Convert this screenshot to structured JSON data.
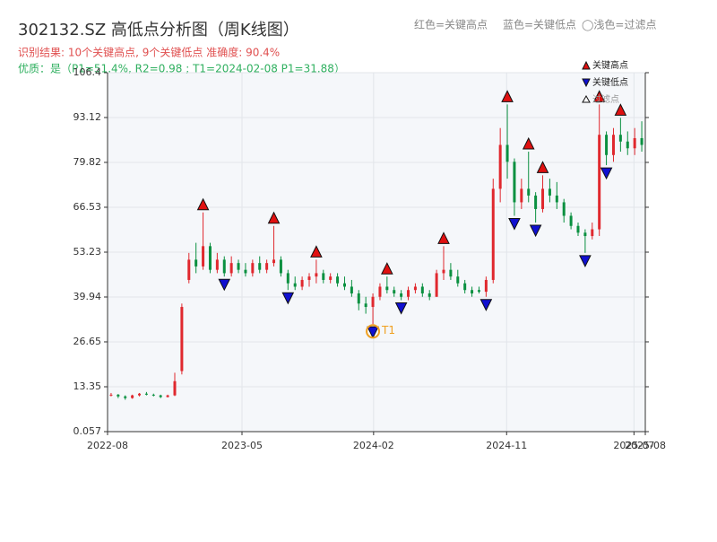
{
  "chart_data": {
    "type": "candlestick",
    "title": "302132.SZ 高低点分析图（周K线图）",
    "subtitle": "识别结果: 10个关键高点, 9个关键低点  准确度: 90.4%",
    "quality_note": "优质：是（P1=51.4%, R2=0.98 ; T1=2024-02-08 P1=31.88）",
    "top_legend": [
      "红色=关键高点",
      "蓝色=关键低点",
      "◯浅色=过滤点"
    ],
    "legend": {
      "high": "关键高点",
      "low": "关键低点",
      "filtered": "过滤点",
      "high_color": "#e01010",
      "low_color": "#1010d0",
      "filtered_color": "#ffffff"
    },
    "up_color": "#e0282e",
    "down_color": "#0a9040",
    "xlim": [
      0,
      76
    ],
    "xticks": [
      {
        "value": 0,
        "label": "2022-08"
      },
      {
        "value": 19,
        "label": "2023-05"
      },
      {
        "value": 37.6,
        "label": "2024-02"
      },
      {
        "value": 56.4,
        "label": "2024-11"
      },
      {
        "value": 74.4,
        "label": "2025-07"
      },
      {
        "value": 76,
        "label": "2025-08"
      }
    ],
    "ylim": [
      0.057,
      106.4
    ],
    "yticks": [
      0.057,
      13.35,
      26.65,
      39.94,
      53.23,
      66.53,
      79.82,
      93.12,
      106.4
    ],
    "grid": true,
    "candles": [
      [
        11,
        11.5,
        10.5,
        11
      ],
      [
        11,
        11.2,
        10,
        10.5
      ],
      [
        10.5,
        10.8,
        9.5,
        10
      ],
      [
        10,
        11,
        9.8,
        10.8
      ],
      [
        10.8,
        11.5,
        10.5,
        11.3
      ],
      [
        11.3,
        11.8,
        10.8,
        11
      ],
      [
        11,
        11.3,
        10.5,
        10.8
      ],
      [
        10.8,
        11,
        10,
        10.3
      ],
      [
        10.3,
        11,
        10.2,
        10.8
      ],
      [
        10.8,
        17.5,
        10.6,
        15
      ],
      [
        18,
        38,
        17,
        37
      ],
      [
        45,
        53,
        44,
        51
      ],
      [
        51,
        56,
        47,
        49
      ],
      [
        49,
        65,
        48,
        55
      ],
      [
        55,
        56,
        47,
        48
      ],
      [
        48,
        53,
        47,
        51
      ],
      [
        51,
        52,
        46,
        47
      ],
      [
        47,
        52,
        46,
        50
      ],
      [
        50,
        51,
        47,
        48
      ],
      [
        48,
        50,
        46,
        47
      ],
      [
        47,
        51,
        46,
        50
      ],
      [
        50,
        52,
        47,
        48
      ],
      [
        48,
        51,
        47,
        50
      ],
      [
        50,
        61,
        49,
        51
      ],
      [
        51,
        52,
        46,
        47
      ],
      [
        47,
        48,
        42,
        44
      ],
      [
        44,
        46,
        42,
        43
      ],
      [
        43,
        46,
        42,
        45
      ],
      [
        45,
        47,
        43,
        46
      ],
      [
        46,
        51,
        44,
        47
      ],
      [
        47,
        48,
        44,
        45
      ],
      [
        45,
        47,
        44,
        46
      ],
      [
        46,
        47,
        43,
        44
      ],
      [
        44,
        46,
        42,
        43
      ],
      [
        43,
        45,
        40,
        41
      ],
      [
        41,
        42,
        36,
        38
      ],
      [
        38,
        40,
        35,
        37
      ],
      [
        37,
        41,
        31.88,
        40
      ],
      [
        40,
        44,
        39,
        43
      ],
      [
        43,
        46,
        41,
        42
      ],
      [
        42,
        43,
        40,
        41
      ],
      [
        41,
        42,
        39,
        40
      ],
      [
        40,
        43,
        39,
        42
      ],
      [
        42,
        44,
        41,
        43
      ],
      [
        43,
        44,
        40,
        41
      ],
      [
        41,
        42,
        39,
        40
      ],
      [
        40,
        48,
        40,
        47
      ],
      [
        47,
        55,
        45,
        48
      ],
      [
        48,
        50,
        45,
        46
      ],
      [
        46,
        48,
        43,
        44
      ],
      [
        44,
        45,
        41,
        42
      ],
      [
        42,
        43,
        40,
        41
      ],
      [
        42,
        43,
        41,
        41.5
      ],
      [
        41.5,
        46,
        40,
        45
      ],
      [
        45,
        75,
        44,
        72
      ],
      [
        72,
        90,
        68,
        85
      ],
      [
        85,
        97,
        75,
        80
      ],
      [
        80,
        81,
        64,
        68
      ],
      [
        68,
        75,
        66,
        72
      ],
      [
        72,
        83,
        68,
        70
      ],
      [
        70,
        71,
        62,
        66
      ],
      [
        66,
        76,
        65,
        72
      ],
      [
        72,
        75,
        68,
        70
      ],
      [
        70,
        74,
        66,
        68
      ],
      [
        68,
        69,
        62,
        64
      ],
      [
        64,
        65,
        60,
        61
      ],
      [
        61,
        62,
        58,
        59
      ],
      [
        59,
        60,
        53,
        58
      ],
      [
        58,
        62,
        57,
        60
      ],
      [
        60,
        97,
        58,
        88
      ],
      [
        88,
        89,
        79,
        82
      ],
      [
        82,
        90,
        80,
        88
      ],
      [
        88,
        93,
        83,
        86
      ],
      [
        86,
        89,
        82,
        84
      ],
      [
        84,
        90,
        82,
        87
      ],
      [
        87,
        92,
        83,
        85
      ]
    ],
    "key_highs": [
      13,
      23,
      29,
      39,
      47,
      56,
      59,
      61,
      69,
      72
    ],
    "key_lows": [
      16,
      25,
      37,
      41,
      53,
      57,
      60,
      67,
      70
    ],
    "t1_label": "T1",
    "t1_index": 37,
    "t1_color": "#f0a020"
  }
}
